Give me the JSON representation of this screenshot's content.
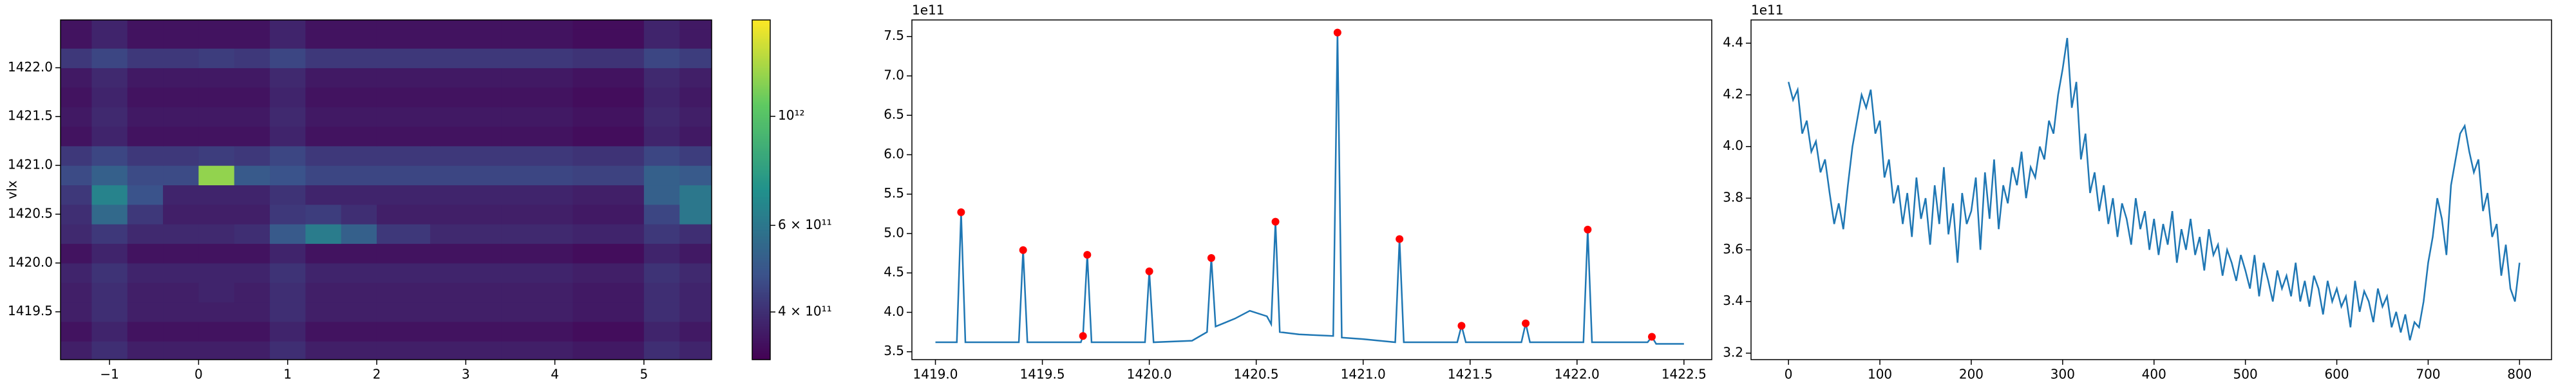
{
  "chart_data": [
    {
      "type": "heatmap",
      "y_label": "vlx",
      "colormap": "viridis",
      "xlim": [
        -1.55,
        5.76
      ],
      "ylim": [
        1419.01,
        1422.49
      ],
      "xticks": [
        {
          "value": -1,
          "label": "−1"
        },
        0,
        1,
        2,
        3,
        4,
        5
      ],
      "yticks": [
        1419.5,
        {
          "value": 1420,
          "label": "1420.0"
        },
        1420.5,
        {
          "value": 1421,
          "label": "1421.0"
        },
        1421.5,
        {
          "value": 1422,
          "label": "1422.0"
        }
      ],
      "xbins": [
        -1.55,
        -1.2,
        -0.8,
        -0.4,
        0,
        0.4,
        0.8,
        1.2,
        1.6,
        2.0,
        2.6,
        3.4,
        4.2,
        5.0,
        5.4,
        5.76
      ],
      "ybins": [
        1419.01,
        1419.2,
        1419.4,
        1419.6,
        1419.8,
        1420.0,
        1420.2,
        1420.4,
        1420.6,
        1420.8,
        1421.0,
        1421.2,
        1421.4,
        1421.6,
        1421.8,
        1422.0,
        1422.2,
        1422.4,
        1422.49
      ],
      "values": [
        [
          370000000000.0,
          400000000000.0,
          370000000000.0,
          370000000000.0,
          370000000000.0,
          370000000000.0,
          400000000000.0,
          370000000000.0,
          370000000000.0,
          370000000000.0,
          370000000000.0,
          370000000000.0,
          360000000000.0,
          400000000000.0,
          380000000000.0
        ],
        [
          350000000000.0,
          380000000000.0,
          350000000000.0,
          350000000000.0,
          350000000000.0,
          350000000000.0,
          380000000000.0,
          350000000000.0,
          350000000000.0,
          350000000000.0,
          350000000000.0,
          350000000000.0,
          340000000000.0,
          380000000000.0,
          360000000000.0
        ],
        [
          370000000000.0,
          400000000000.0,
          370000000000.0,
          370000000000.0,
          370000000000.0,
          370000000000.0,
          400000000000.0,
          370000000000.0,
          370000000000.0,
          370000000000.0,
          370000000000.0,
          370000000000.0,
          360000000000.0,
          400000000000.0,
          380000000000.0
        ],
        [
          370000000000.0,
          400000000000.0,
          370000000000.0,
          370000000000.0,
          380000000000.0,
          370000000000.0,
          400000000000.0,
          370000000000.0,
          370000000000.0,
          370000000000.0,
          370000000000.0,
          370000000000.0,
          360000000000.0,
          400000000000.0,
          380000000000.0
        ],
        [
          380000000000.0,
          410000000000.0,
          380000000000.0,
          380000000000.0,
          380000000000.0,
          380000000000.0,
          410000000000.0,
          380000000000.0,
          380000000000.0,
          380000000000.0,
          380000000000.0,
          380000000000.0,
          370000000000.0,
          410000000000.0,
          390000000000.0
        ],
        [
          350000000000.0,
          380000000000.0,
          350000000000.0,
          350000000000.0,
          350000000000.0,
          350000000000.0,
          380000000000.0,
          350000000000.0,
          350000000000.0,
          350000000000.0,
          350000000000.0,
          350000000000.0,
          340000000000.0,
          380000000000.0,
          360000000000.0
        ],
        [
          390000000000.0,
          420000000000.0,
          390000000000.0,
          390000000000.0,
          390000000000.0,
          400000000000.0,
          500000000000.0,
          620000000000.0,
          520000000000.0,
          420000000000.0,
          390000000000.0,
          390000000000.0,
          380000000000.0,
          420000000000.0,
          400000000000.0
        ],
        [
          400000000000.0,
          550000000000.0,
          420000000000.0,
          370000000000.0,
          370000000000.0,
          370000000000.0,
          420000000000.0,
          430000000000.0,
          400000000000.0,
          370000000000.0,
          370000000000.0,
          370000000000.0,
          360000000000.0,
          450000000000.0,
          600000000000.0
        ],
        [
          420000000000.0,
          650000000000.0,
          480000000000.0,
          380000000000.0,
          380000000000.0,
          380000000000.0,
          410000000000.0,
          380000000000.0,
          380000000000.0,
          380000000000.0,
          380000000000.0,
          380000000000.0,
          370000000000.0,
          520000000000.0,
          600000000000.0
        ],
        [
          460000000000.0,
          520000000000.0,
          460000000000.0,
          460000000000.0,
          1200000000000.0,
          500000000000.0,
          480000000000.0,
          450000000000.0,
          450000000000.0,
          450000000000.0,
          450000000000.0,
          450000000000.0,
          440000000000.0,
          520000000000.0,
          500000000000.0
        ],
        [
          420000000000.0,
          450000000000.0,
          420000000000.0,
          420000000000.0,
          430000000000.0,
          420000000000.0,
          450000000000.0,
          420000000000.0,
          420000000000.0,
          420000000000.0,
          420000000000.0,
          420000000000.0,
          410000000000.0,
          450000000000.0,
          430000000000.0
        ],
        [
          350000000000.0,
          380000000000.0,
          350000000000.0,
          350000000000.0,
          350000000000.0,
          350000000000.0,
          380000000000.0,
          350000000000.0,
          350000000000.0,
          350000000000.0,
          350000000000.0,
          350000000000.0,
          340000000000.0,
          380000000000.0,
          360000000000.0
        ],
        [
          360000000000.0,
          390000000000.0,
          360000000000.0,
          360000000000.0,
          360000000000.0,
          360000000000.0,
          390000000000.0,
          360000000000.0,
          360000000000.0,
          360000000000.0,
          360000000000.0,
          360000000000.0,
          350000000000.0,
          390000000000.0,
          370000000000.0
        ],
        [
          350000000000.0,
          380000000000.0,
          350000000000.0,
          350000000000.0,
          350000000000.0,
          350000000000.0,
          380000000000.0,
          350000000000.0,
          350000000000.0,
          350000000000.0,
          350000000000.0,
          350000000000.0,
          340000000000.0,
          380000000000.0,
          360000000000.0
        ],
        [
          360000000000.0,
          390000000000.0,
          360000000000.0,
          360000000000.0,
          360000000000.0,
          360000000000.0,
          390000000000.0,
          360000000000.0,
          360000000000.0,
          360000000000.0,
          360000000000.0,
          360000000000.0,
          350000000000.0,
          390000000000.0,
          370000000000.0
        ],
        [
          420000000000.0,
          450000000000.0,
          420000000000.0,
          420000000000.0,
          430000000000.0,
          420000000000.0,
          450000000000.0,
          420000000000.0,
          420000000000.0,
          420000000000.0,
          420000000000.0,
          420000000000.0,
          410000000000.0,
          450000000000.0,
          430000000000.0
        ],
        [
          350000000000.0,
          380000000000.0,
          350000000000.0,
          350000000000.0,
          350000000000.0,
          350000000000.0,
          380000000000.0,
          350000000000.0,
          350000000000.0,
          350000000000.0,
          350000000000.0,
          350000000000.0,
          340000000000.0,
          380000000000.0,
          360000000000.0
        ],
        [
          350000000000.0,
          380000000000.0,
          350000000000.0,
          350000000000.0,
          350000000000.0,
          350000000000.0,
          380000000000.0,
          350000000000.0,
          350000000000.0,
          350000000000.0,
          350000000000.0,
          350000000000.0,
          340000000000.0,
          380000000000.0,
          360000000000.0
        ]
      ],
      "colorbar": {
        "scale": "log",
        "clim": [
          320000000000.0,
          1570000000000.0
        ],
        "ticks": [
          {
            "value": 400000000000.0,
            "label": "4 × 10¹¹"
          },
          {
            "value": 600000000000.0,
            "label": "6 × 10¹¹"
          },
          {
            "value": 1000000000000.0,
            "label": "10¹²"
          }
        ]
      }
    },
    {
      "type": "line",
      "y_offset_label": "1e11",
      "xlim": [
        1418.89,
        1422.63
      ],
      "ylim": [
        3.4,
        7.71
      ],
      "xticks": [
        {
          "value": 1419,
          "label": "1419.0"
        },
        1419.5,
        {
          "value": 1420,
          "label": "1420.0"
        },
        1420.5,
        {
          "value": 1421,
          "label": "1421.0"
        },
        1421.5,
        {
          "value": 1422,
          "label": "1422.0"
        },
        1422.5
      ],
      "yticks": [
        3.5,
        {
          "value": 4,
          "label": "4.0"
        },
        4.5,
        {
          "value": 5,
          "label": "5.0"
        },
        5.5,
        {
          "value": 6,
          "label": "6.0"
        },
        6.5,
        {
          "value": 7,
          "label": "7.0"
        },
        7.5
      ],
      "series": [
        {
          "type": "line",
          "color": "#1f77b4",
          "x": [
            1419.0,
            1419.1,
            1419.12,
            1419.14,
            1419.39,
            1419.41,
            1419.43,
            1419.68,
            1419.69,
            1419.71,
            1419.73,
            1419.98,
            1420.0,
            1420.02,
            1420.2,
            1420.27,
            1420.29,
            1420.31,
            1420.4,
            1420.47,
            1420.55,
            1420.57,
            1420.59,
            1420.61,
            1420.7,
            1420.86,
            1420.88,
            1420.9,
            1421.0,
            1421.15,
            1421.17,
            1421.19,
            1421.44,
            1421.46,
            1421.48,
            1421.74,
            1421.76,
            1421.78,
            1422.03,
            1422.05,
            1422.07,
            1422.33,
            1422.35,
            1422.37,
            1422.5
          ],
          "values": [
            3.62,
            3.62,
            5.27,
            3.62,
            3.62,
            4.79,
            3.62,
            3.62,
            3.7,
            4.73,
            3.62,
            3.62,
            4.52,
            3.62,
            3.64,
            3.75,
            4.69,
            3.82,
            3.92,
            4.02,
            3.95,
            3.85,
            5.15,
            3.75,
            3.72,
            3.7,
            7.55,
            3.68,
            3.66,
            3.62,
            4.93,
            3.62,
            3.62,
            3.83,
            3.62,
            3.62,
            3.86,
            3.62,
            3.62,
            5.05,
            3.62,
            3.62,
            3.69,
            3.6,
            3.6
          ]
        },
        {
          "type": "scatter",
          "color": "#ff0000",
          "x": [
            1419.12,
            1419.41,
            1419.69,
            1419.71,
            1420.0,
            1420.29,
            1420.59,
            1420.88,
            1421.17,
            1421.46,
            1421.76,
            1422.05,
            1422.35
          ],
          "values": [
            5.27,
            4.79,
            3.7,
            4.73,
            4.52,
            4.69,
            5.15,
            7.55,
            4.93,
            3.83,
            3.86,
            5.05,
            3.69
          ]
        }
      ]
    },
    {
      "type": "line",
      "y_offset_label": "1e11",
      "xlim": [
        -41,
        835
      ],
      "ylim": [
        3.175,
        4.49
      ],
      "xticks": [
        0,
        100,
        200,
        300,
        400,
        500,
        600,
        700,
        800
      ],
      "yticks": [
        3.2,
        3.4,
        3.6,
        3.8,
        {
          "value": 4,
          "label": "4.0"
        },
        4.2,
        4.4
      ],
      "series": [
        {
          "type": "line",
          "color": "#1f77b4",
          "x": [
            0,
            5,
            10,
            15,
            20,
            25,
            30,
            35,
            40,
            45,
            50,
            55,
            60,
            65,
            70,
            75,
            80,
            85,
            90,
            95,
            100,
            105,
            110,
            115,
            120,
            125,
            130,
            135,
            140,
            145,
            150,
            155,
            160,
            165,
            170,
            175,
            180,
            185,
            190,
            195,
            200,
            205,
            210,
            215,
            220,
            225,
            230,
            235,
            240,
            245,
            250,
            255,
            260,
            265,
            270,
            275,
            280,
            285,
            290,
            295,
            300,
            305,
            310,
            315,
            320,
            325,
            330,
            335,
            340,
            345,
            350,
            355,
            360,
            365,
            370,
            375,
            380,
            385,
            390,
            395,
            400,
            405,
            410,
            415,
            420,
            425,
            430,
            435,
            440,
            445,
            450,
            455,
            460,
            465,
            470,
            475,
            480,
            485,
            490,
            495,
            500,
            505,
            510,
            515,
            520,
            525,
            530,
            535,
            540,
            545,
            550,
            555,
            560,
            565,
            570,
            575,
            580,
            585,
            590,
            595,
            600,
            605,
            610,
            615,
            620,
            625,
            630,
            635,
            640,
            645,
            650,
            655,
            660,
            665,
            670,
            675,
            680,
            685,
            690,
            695,
            700,
            705,
            710,
            715,
            720,
            725,
            730,
            735,
            740,
            745,
            750,
            755,
            760,
            765,
            770,
            775,
            780,
            785,
            790,
            795,
            800
          ],
          "values": [
            4.25,
            4.18,
            4.22,
            4.05,
            4.1,
            3.98,
            4.02,
            3.9,
            3.95,
            3.82,
            3.7,
            3.78,
            3.68,
            3.85,
            4.0,
            4.1,
            4.2,
            4.15,
            4.22,
            4.05,
            4.1,
            3.88,
            3.95,
            3.78,
            3.85,
            3.7,
            3.82,
            3.65,
            3.88,
            3.72,
            3.8,
            3.62,
            3.85,
            3.7,
            3.92,
            3.66,
            3.78,
            3.55,
            3.82,
            3.7,
            3.75,
            3.88,
            3.6,
            3.9,
            3.72,
            3.95,
            3.68,
            3.85,
            3.78,
            3.92,
            3.85,
            3.98,
            3.8,
            3.92,
            3.88,
            4.0,
            3.95,
            4.1,
            4.05,
            4.2,
            4.3,
            4.42,
            4.15,
            4.25,
            3.95,
            4.05,
            3.82,
            3.9,
            3.75,
            3.85,
            3.7,
            3.8,
            3.65,
            3.78,
            3.72,
            3.62,
            3.8,
            3.68,
            3.75,
            3.6,
            3.72,
            3.58,
            3.7,
            3.62,
            3.75,
            3.55,
            3.68,
            3.6,
            3.72,
            3.58,
            3.65,
            3.52,
            3.68,
            3.58,
            3.62,
            3.5,
            3.6,
            3.55,
            3.48,
            3.58,
            3.52,
            3.45,
            3.58,
            3.42,
            3.55,
            3.48,
            3.4,
            3.52,
            3.45,
            3.5,
            3.42,
            3.55,
            3.4,
            3.48,
            3.38,
            3.5,
            3.45,
            3.35,
            3.48,
            3.4,
            3.45,
            3.38,
            3.42,
            3.3,
            3.48,
            3.36,
            3.44,
            3.4,
            3.32,
            3.45,
            3.38,
            3.42,
            3.3,
            3.36,
            3.28,
            3.35,
            3.25,
            3.32,
            3.3,
            3.4,
            3.55,
            3.65,
            3.8,
            3.72,
            3.58,
            3.85,
            3.95,
            4.05,
            4.08,
            3.98,
            3.9,
            3.95,
            3.75,
            3.82,
            3.65,
            3.7,
            3.5,
            3.62,
            3.45,
            3.4,
            3.55
          ]
        }
      ]
    }
  ]
}
